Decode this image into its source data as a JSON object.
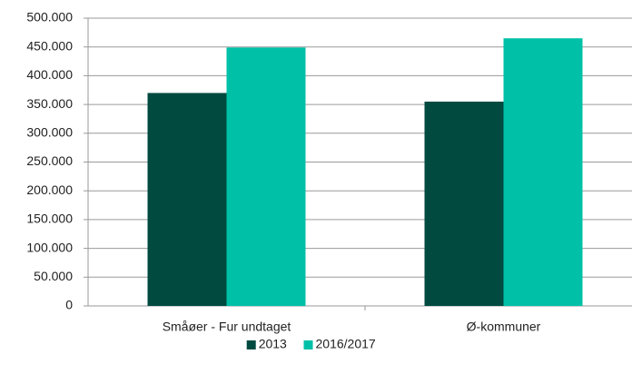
{
  "chart_data": {
    "type": "bar",
    "categories": [
      "Småøer - Fur undtaget",
      "Ø-kommuner"
    ],
    "series": [
      {
        "name": "2013",
        "color": "#004a40",
        "values": [
          370000,
          355000
        ]
      },
      {
        "name": "2016/2017",
        "color": "#00c0a8",
        "values": [
          449000,
          465000
        ]
      }
    ],
    "ylim": [
      0,
      500000
    ],
    "yticks": [
      0,
      {
        "value": 50000,
        "label": "50.000"
      },
      {
        "value": 100000,
        "label": "100.000"
      },
      {
        "value": 150000,
        "label": "150.000"
      },
      {
        "value": 200000,
        "label": "200.000"
      },
      {
        "value": 250000,
        "label": "250.000"
      },
      {
        "value": 300000,
        "label": "300.000"
      },
      {
        "value": 350000,
        "label": "350.000"
      },
      {
        "value": 400000,
        "label": "400.000"
      },
      {
        "value": 450000,
        "label": "450.000"
      },
      {
        "value": 500000,
        "label": "500.000"
      }
    ],
    "grid": true,
    "legend": "bottom"
  }
}
